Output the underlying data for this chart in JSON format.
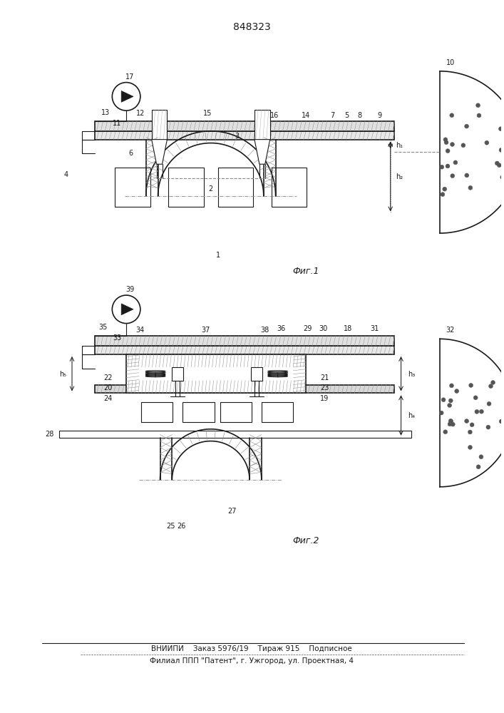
{
  "title": "848323",
  "fig1_label": "Фиг.1",
  "fig2_label": "Фиг.2",
  "bottom_text1": "ВНИИПИ    Заказ 5976/19    Тираж 915    Подписное",
  "bottom_text2": "Филиал ППП \"Патент\", г. Ужгород, ул. Проектная, 4",
  "bg_color": "#ffffff",
  "line_color": "#1a1a1a"
}
